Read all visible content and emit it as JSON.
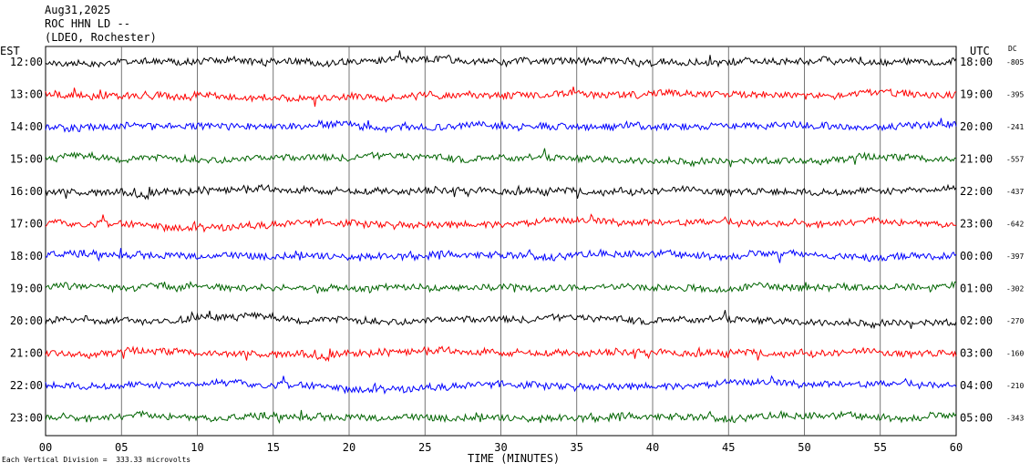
{
  "header": {
    "date": "Aug31,2025",
    "station": "ROC HHN LD --",
    "network": "(LDEO, Rochester)"
  },
  "left_zone_label": "EST",
  "right_zone_label": "UTC",
  "dc_label": "DC",
  "footer_note": "Each Vertical Division =  333.33 microvolts",
  "chart_data": {
    "type": "line",
    "title": "",
    "xlabel": "TIME (MINUTES)",
    "xlim": [
      0,
      60
    ],
    "x_ticks": [
      "00",
      "05",
      "10",
      "15",
      "20",
      "25",
      "30",
      "35",
      "40",
      "45",
      "50",
      "55",
      "60"
    ],
    "grid": true,
    "trace_colors": [
      "#000000",
      "#ff0000",
      "#0000ff",
      "#006400"
    ],
    "rows": [
      {
        "est": "12:00",
        "utc": "18:00",
        "dc": "-805",
        "color": "#000000"
      },
      {
        "est": "13:00",
        "utc": "19:00",
        "dc": "-395",
        "color": "#ff0000"
      },
      {
        "est": "14:00",
        "utc": "20:00",
        "dc": "-241",
        "color": "#0000ff"
      },
      {
        "est": "15:00",
        "utc": "21:00",
        "dc": "-557",
        "color": "#006400"
      },
      {
        "est": "16:00",
        "utc": "22:00",
        "dc": "-437",
        "color": "#000000"
      },
      {
        "est": "17:00",
        "utc": "23:00",
        "dc": "-642",
        "color": "#ff0000"
      },
      {
        "est": "18:00",
        "utc": "00:00",
        "dc": "-397",
        "color": "#0000ff"
      },
      {
        "est": "19:00",
        "utc": "01:00",
        "dc": "-302",
        "color": "#006400"
      },
      {
        "est": "20:00",
        "utc": "02:00",
        "dc": "-270",
        "color": "#000000"
      },
      {
        "est": "21:00",
        "utc": "03:00",
        "dc": "-160",
        "color": "#ff0000"
      },
      {
        "est": "22:00",
        "utc": "04:00",
        "dc": "-210",
        "color": "#0000ff"
      },
      {
        "est": "23:00",
        "utc": "05:00",
        "dc": "-343",
        "color": "#006400"
      }
    ]
  }
}
